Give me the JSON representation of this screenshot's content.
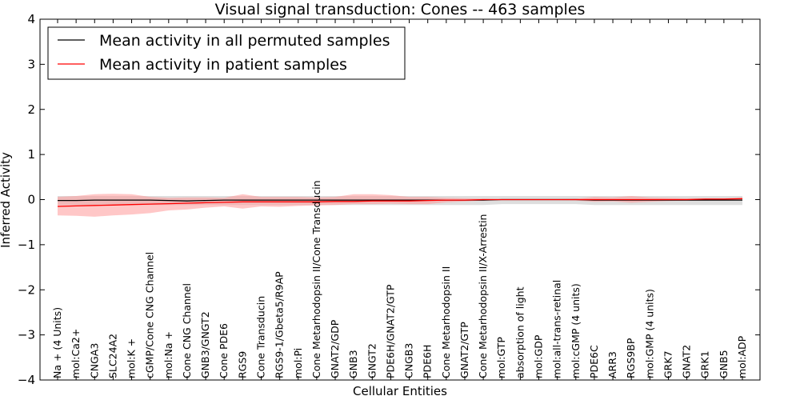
{
  "chart_data": {
    "type": "line",
    "title": "Visual signal transduction: Cones -- 463 samples",
    "xlabel": "Cellular Entities",
    "ylabel": "Inferred Activity",
    "ylim": [
      -4,
      4
    ],
    "yticks": [
      4,
      3,
      2,
      1,
      0,
      -1,
      -2,
      -3,
      -4
    ],
    "ytick_labels": [
      "4",
      "3",
      "2",
      "1",
      "0",
      "−1",
      "−2",
      "−3",
      "−4"
    ],
    "grid": false,
    "legend_position": "top-left",
    "categories": [
      "Na + (4 Units)",
      "mol:Ca2+",
      "CNGA3",
      "SLC24A2",
      "mol:K +",
      "cGMP/Cone CNG Channel",
      "mol:Na +",
      "Cone CNG Channel",
      "GNB3/GNGT2",
      "Cone PDE6",
      "RGS9",
      "Cone Transducin",
      "RGS9-1/Gbeta5/R9AP",
      "mol:Pi",
      "Cone Metarhodopsin II/Cone Transducin",
      "GNAT2/GDP",
      "GNB3",
      "GNGT2",
      "PDE6H/GNAT2/GTP",
      "CNGB3",
      "PDE6H",
      "Cone Metarhodopsin II",
      "GNAT2/GTP",
      "Cone Metarhodopsin II/X-Arrestin",
      "mol:GTP",
      "absorption of light",
      "mol:GDP",
      "mol:all-trans-retinal",
      "mol:cGMP (4 units)",
      "PDE6C",
      "ARR3",
      "RGS9BP",
      "mol:GMP (4 units)",
      "GRK7",
      "GNAT2",
      "GRK1",
      "GNB5",
      "mol:ADP"
    ],
    "series": [
      {
        "name": "Mean activity in all permuted samples",
        "color": "#000000",
        "band_color": "#c8c8c8",
        "values": [
          -0.02,
          -0.02,
          -0.01,
          -0.01,
          -0.01,
          -0.01,
          -0.02,
          -0.03,
          -0.02,
          -0.01,
          -0.01,
          -0.01,
          -0.01,
          -0.01,
          -0.01,
          -0.01,
          -0.01,
          -0.01,
          -0.01,
          -0.01,
          -0.01,
          -0.01,
          -0.01,
          -0.01,
          0.0,
          0.0,
          0.0,
          0.0,
          0.0,
          -0.01,
          -0.01,
          -0.01,
          -0.01,
          -0.01,
          -0.01,
          -0.01,
          -0.01,
          -0.01
        ],
        "lower": [
          -0.12,
          -0.12,
          -0.12,
          -0.12,
          -0.12,
          -0.12,
          -0.12,
          -0.12,
          -0.12,
          -0.12,
          -0.12,
          -0.12,
          -0.12,
          -0.12,
          -0.12,
          -0.12,
          -0.12,
          -0.12,
          -0.12,
          -0.12,
          -0.12,
          -0.12,
          -0.12,
          -0.12,
          -0.1,
          -0.1,
          -0.1,
          -0.1,
          -0.1,
          -0.12,
          -0.12,
          -0.12,
          -0.12,
          -0.12,
          -0.12,
          -0.12,
          -0.12,
          -0.12
        ],
        "upper": [
          0.08,
          0.08,
          0.08,
          0.08,
          0.08,
          0.08,
          0.08,
          0.08,
          0.08,
          0.08,
          0.08,
          0.08,
          0.08,
          0.08,
          0.08,
          0.08,
          0.08,
          0.08,
          0.08,
          0.08,
          0.08,
          0.08,
          0.08,
          0.08,
          0.08,
          0.08,
          0.08,
          0.08,
          0.08,
          0.08,
          0.08,
          0.08,
          0.08,
          0.08,
          0.08,
          0.08,
          0.08,
          0.08
        ]
      },
      {
        "name": "Mean activity in patient samples",
        "color": "#ff0000",
        "band_color": "#ff9999",
        "values": [
          -0.15,
          -0.14,
          -0.13,
          -0.12,
          -0.11,
          -0.1,
          -0.09,
          -0.08,
          -0.07,
          -0.06,
          -0.05,
          -0.05,
          -0.05,
          -0.05,
          -0.05,
          -0.04,
          -0.04,
          -0.03,
          -0.03,
          -0.03,
          -0.02,
          -0.01,
          -0.01,
          0.0,
          0.0,
          0.0,
          0.0,
          0.0,
          0.0,
          0.0,
          0.0,
          0.0,
          0.0,
          0.0,
          0.0,
          0.01,
          0.01,
          0.02
        ],
        "lower": [
          -0.35,
          -0.36,
          -0.38,
          -0.35,
          -0.33,
          -0.3,
          -0.24,
          -0.22,
          -0.18,
          -0.15,
          -0.2,
          -0.15,
          -0.16,
          -0.14,
          -0.13,
          -0.12,
          -0.1,
          -0.1,
          -0.09,
          -0.1,
          -0.1,
          -0.06,
          -0.04,
          -0.02,
          -0.01,
          -0.01,
          -0.01,
          -0.01,
          -0.02,
          -0.05,
          -0.04,
          -0.07,
          -0.05,
          -0.03,
          -0.02,
          -0.02,
          -0.01,
          -0.01
        ],
        "upper": [
          0.06,
          0.08,
          0.12,
          0.13,
          0.12,
          0.06,
          0.04,
          0.05,
          0.05,
          0.04,
          0.12,
          0.06,
          0.06,
          0.06,
          0.05,
          0.06,
          0.12,
          0.12,
          0.1,
          0.06,
          0.06,
          0.04,
          0.03,
          0.02,
          0.01,
          0.01,
          0.01,
          0.01,
          0.02,
          0.06,
          0.05,
          0.08,
          0.05,
          0.04,
          0.03,
          0.03,
          0.03,
          0.05
        ]
      }
    ]
  }
}
